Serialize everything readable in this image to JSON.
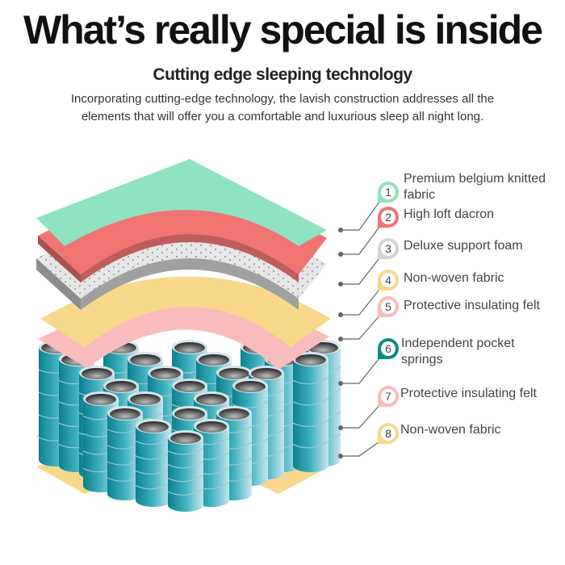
{
  "header": {
    "title": "What’s really special is inside",
    "subtitle": "Cutting edge sleeping technology",
    "description": "Incorporating cutting-edge technology, the lavish construction addresses all the elements that will offer you a comfortable and luxurious sleep all night long."
  },
  "layers": [
    {
      "number": "1",
      "label": "Premium belgium knitted fabric",
      "color": "#8fe3c0"
    },
    {
      "number": "2",
      "label": "High loft dacron",
      "color": "#f07472"
    },
    {
      "number": "3",
      "label": "Deluxe support foam",
      "color": "#d3d3d3"
    },
    {
      "number": "4",
      "label": "Non-woven fabric",
      "color": "#f8d88a"
    },
    {
      "number": "5",
      "label": "Protective insulating felt",
      "color": "#f9bcbc"
    },
    {
      "number": "6",
      "label": "Independent pocket springs",
      "color": "#0e8a87"
    },
    {
      "number": "7",
      "label": "Protective insulating felt",
      "color": "#f9bcbc"
    },
    {
      "number": "8",
      "label": "Non-woven fabric",
      "color": "#f8d88a"
    }
  ]
}
